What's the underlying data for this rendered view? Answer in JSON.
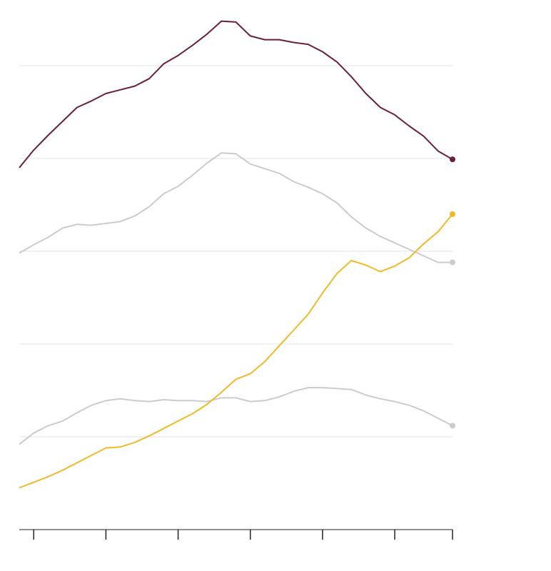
{
  "chart_data": {
    "type": "line",
    "x": [
      0,
      1,
      2,
      3,
      4,
      5,
      6,
      7,
      8,
      9,
      10,
      11,
      12,
      13,
      14,
      15,
      16,
      17,
      18,
      19,
      20,
      21,
      22,
      23,
      24,
      25,
      26,
      27,
      28,
      29,
      30
    ],
    "series": [
      {
        "color": "#6b1f3f",
        "values": [
          3.9,
          4.09,
          4.25,
          4.4,
          4.55,
          4.62,
          4.7,
          4.74,
          4.78,
          4.86,
          5.02,
          5.11,
          5.22,
          5.34,
          5.48,
          5.47,
          5.32,
          5.28,
          5.28,
          5.25,
          5.23,
          5.15,
          5.04,
          4.88,
          4.7,
          4.55,
          4.47,
          4.35,
          4.24,
          4.08,
          3.99
        ]
      },
      {
        "color": "#cccccc",
        "values": [
          2.98,
          3.07,
          3.15,
          3.25,
          3.29,
          3.28,
          3.3,
          3.32,
          3.38,
          3.48,
          3.62,
          3.7,
          3.82,
          3.95,
          4.06,
          4.05,
          3.94,
          3.89,
          3.84,
          3.75,
          3.69,
          3.62,
          3.52,
          3.37,
          3.25,
          3.16,
          3.09,
          3.02,
          2.95,
          2.88,
          2.88
        ]
      },
      {
        "color": "#f2b928",
        "values": [
          0.45,
          0.51,
          0.57,
          0.64,
          0.72,
          0.8,
          0.88,
          0.89,
          0.94,
          1.01,
          1.09,
          1.17,
          1.25,
          1.35,
          1.48,
          1.62,
          1.68,
          1.81,
          1.98,
          2.15,
          2.32,
          2.55,
          2.76,
          2.9,
          2.85,
          2.78,
          2.84,
          2.93,
          3.08,
          3.21,
          3.4
        ]
      },
      {
        "color": "#cccccc",
        "values": [
          0.92,
          1.04,
          1.12,
          1.17,
          1.26,
          1.34,
          1.39,
          1.41,
          1.39,
          1.38,
          1.4,
          1.39,
          1.39,
          1.38,
          1.42,
          1.42,
          1.38,
          1.39,
          1.43,
          1.49,
          1.53,
          1.53,
          1.52,
          1.51,
          1.45,
          1.41,
          1.38,
          1.34,
          1.28,
          1.2,
          1.12
        ]
      }
    ],
    "xlim": [
      0,
      30
    ],
    "xticks": [
      1,
      6,
      11,
      16,
      21,
      26,
      30
    ],
    "ylim": [
      0,
      5.5
    ],
    "yticks": [
      0,
      1,
      2,
      3,
      4,
      5
    ],
    "grid": true,
    "end_markers": true
  }
}
